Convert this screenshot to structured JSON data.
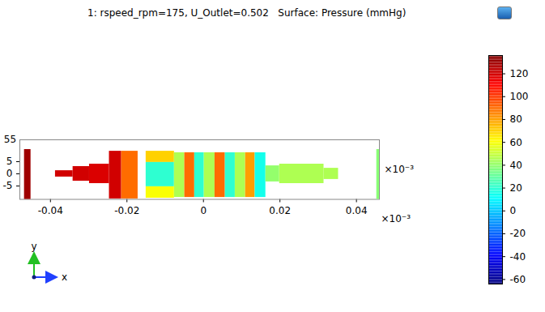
{
  "chart_data": {
    "type": "surface",
    "title": "1: rspeed_rpm=175, U_Outlet=0.502   Surface: Pressure (mmHg)",
    "xlim": [
      -0.048,
      0.046
    ],
    "xticks": [
      -0.04,
      -0.02,
      0,
      0.02,
      0.04
    ],
    "ylim": [
      -10.5,
      14
    ],
    "yticks": [
      -5,
      0,
      5
    ],
    "ylabel": "×10⁻³",
    "annotations": [
      "55",
      "×10⁻³",
      "y",
      "x"
    ],
    "colorbar": {
      "range": [
        -64,
        136
      ],
      "ticks": [
        -60,
        -40,
        -20,
        0,
        20,
        40,
        60,
        80,
        100,
        120
      ]
    },
    "cells": [
      {
        "x0": -0.0468,
        "x1": -0.0451,
        "y0": -10.7,
        "y1": 10,
        "value": 130
      },
      {
        "x0": -0.0387,
        "x1": -0.0341,
        "y0": -1.3,
        "y1": 1.3,
        "value": 120
      },
      {
        "x0": -0.0341,
        "x1": -0.0298,
        "y0": -3,
        "y1": 3,
        "value": 120
      },
      {
        "x0": -0.0298,
        "x1": -0.0246,
        "y0": -4,
        "y1": 4,
        "value": 118
      },
      {
        "x0": -0.0246,
        "x1": -0.0214,
        "y0": -10.3,
        "y1": 9.3,
        "value": 120
      },
      {
        "x0": -0.0214,
        "x1": -0.0171,
        "y0": -10.3,
        "y1": 9.3,
        "value": 90
      },
      {
        "x0": -0.015,
        "x1": -0.0076,
        "y0": 4.7,
        "y1": 9.3,
        "value": 70
      },
      {
        "x0": -0.015,
        "x1": -0.0076,
        "y0": -5.3,
        "y1": 4.7,
        "value": 20
      },
      {
        "x0": -0.015,
        "x1": -0.0076,
        "y0": -10,
        "y1": -5.3,
        "value": 60
      },
      {
        "x0": -0.0076,
        "x1": -0.0049,
        "y0": -9.7,
        "y1": 8.7,
        "value": 45
      },
      {
        "x0": -0.0049,
        "x1": -0.0023,
        "y0": -9.7,
        "y1": 8.7,
        "value": 90
      },
      {
        "x0": -0.0023,
        "x1": 0.0002,
        "y0": -9.7,
        "y1": 8.7,
        "value": 20
      },
      {
        "x0": 0.0002,
        "x1": 0.003,
        "y0": -9.7,
        "y1": 8.7,
        "value": 45
      },
      {
        "x0": 0.003,
        "x1": 0.0057,
        "y0": -9.7,
        "y1": 8.7,
        "value": 90
      },
      {
        "x0": 0.0057,
        "x1": 0.0083,
        "y0": -9.7,
        "y1": 8.7,
        "value": 20
      },
      {
        "x0": 0.0083,
        "x1": 0.011,
        "y0": -9.7,
        "y1": 8.7,
        "value": 45
      },
      {
        "x0": 0.011,
        "x1": 0.0135,
        "y0": -9.7,
        "y1": 8.7,
        "value": 80
      },
      {
        "x0": 0.0135,
        "x1": 0.0163,
        "y0": -9.7,
        "y1": 8.7,
        "value": 15
      },
      {
        "x0": 0.0163,
        "x1": 0.0199,
        "y0": -3.3,
        "y1": 3.3,
        "value": 40
      },
      {
        "x0": 0.0199,
        "x1": 0.0315,
        "y0": -4,
        "y1": 4,
        "value": 45
      },
      {
        "x0": 0.0315,
        "x1": 0.0353,
        "y0": -2.3,
        "y1": 2.3,
        "value": 45
      },
      {
        "x0": 0.0453,
        "x1": 0.0464,
        "y0": -10.7,
        "y1": 10,
        "value": 38
      }
    ]
  }
}
